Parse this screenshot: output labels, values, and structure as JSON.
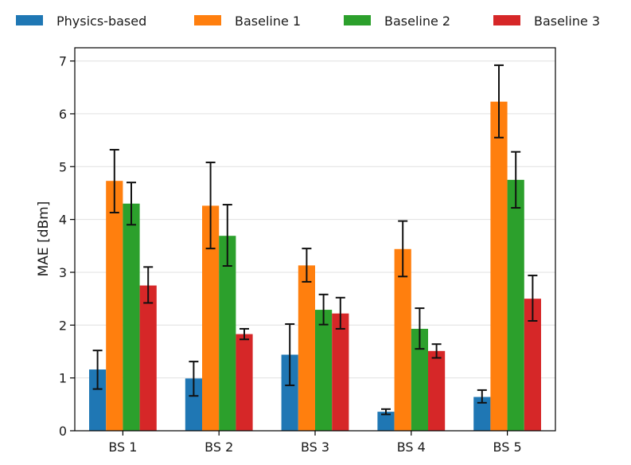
{
  "chart_data": {
    "type": "bar",
    "title": "",
    "xlabel": "",
    "ylabel": "MAE [dBm]",
    "ylim": [
      0,
      7.25
    ],
    "yticks": [
      "0",
      "1",
      "2",
      "3",
      "4",
      "5",
      "6",
      "7"
    ],
    "grid": true,
    "legend_position": "top",
    "categories": [
      "BS 1",
      "BS 2",
      "BS 3",
      "BS 4",
      "BS 5"
    ],
    "series": [
      {
        "name": "Physics-based",
        "color": "#1f77b4",
        "values": [
          1.16,
          0.99,
          1.44,
          0.36,
          0.64
        ],
        "err_low": [
          0.79,
          0.66,
          0.86,
          0.31,
          0.53
        ],
        "err_high": [
          1.52,
          1.31,
          2.02,
          0.41,
          0.77
        ]
      },
      {
        "name": "Baseline 1",
        "color": "#ff7f0e",
        "values": [
          4.73,
          4.26,
          3.13,
          3.44,
          6.23
        ],
        "err_low": [
          4.13,
          3.45,
          2.82,
          2.92,
          5.55
        ],
        "err_high": [
          5.32,
          5.08,
          3.45,
          3.97,
          6.92
        ]
      },
      {
        "name": "Baseline 2",
        "color": "#2ca02c",
        "values": [
          4.3,
          3.69,
          2.29,
          1.93,
          4.75
        ],
        "err_low": [
          3.9,
          3.12,
          2.01,
          1.55,
          4.22
        ],
        "err_high": [
          4.7,
          4.28,
          2.58,
          2.32,
          5.28
        ]
      },
      {
        "name": "Baseline 3",
        "color": "#d62728",
        "values": [
          2.75,
          1.83,
          2.22,
          1.51,
          2.5
        ],
        "err_low": [
          2.42,
          1.73,
          1.93,
          1.38,
          2.08
        ],
        "err_high": [
          3.1,
          1.93,
          2.52,
          1.64,
          2.94
        ]
      }
    ]
  }
}
